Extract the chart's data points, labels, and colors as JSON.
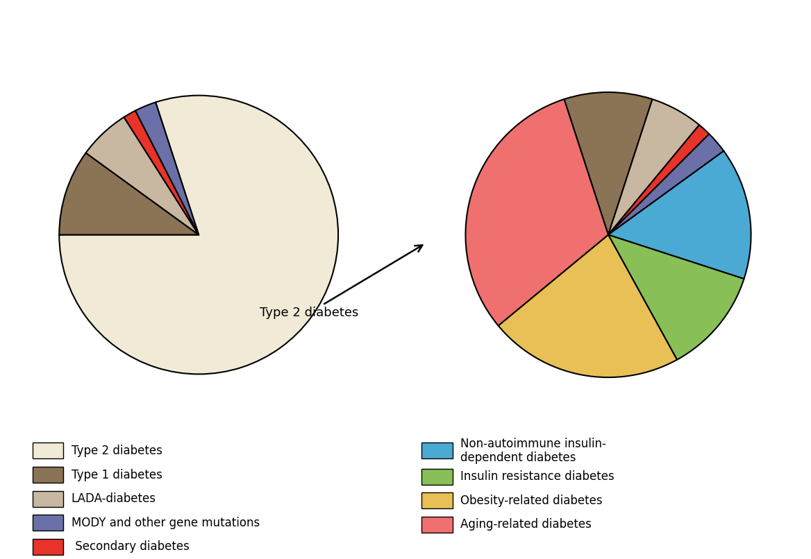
{
  "pie1_values": [
    80,
    10,
    6,
    1.5,
    2.5
  ],
  "pie1_colors": [
    "#f0ead6",
    "#8b7355",
    "#c8b8a2",
    "#e8332a",
    "#6b70a8"
  ],
  "pie1_startangle": 108,
  "pie2_values": [
    10,
    6,
    1.5,
    2.5,
    15,
    12,
    22,
    31
  ],
  "pie2_colors": [
    "#8b7355",
    "#c8b8a2",
    "#e8332a",
    "#6b70a8",
    "#4baad3",
    "#88c057",
    "#e8c055",
    "#f07070"
  ],
  "pie2_startangle": 108,
  "legend_left": [
    {
      "label": "Type 2 diabetes",
      "color": "#f0ead6"
    },
    {
      "label": "Type 1 diabetes",
      "color": "#8b7355"
    },
    {
      "label": "LADA-diabetes",
      "color": "#c8b8a2"
    },
    {
      "label": "MODY and other gene mutations",
      "color": "#6b70a8"
    },
    {
      "label": " Secondary diabetes",
      "color": "#e8332a"
    }
  ],
  "legend_right": [
    {
      "label": "Non-autoimmune insulin-\ndependent diabetes",
      "color": "#4baad3"
    },
    {
      "label": "Insulin resistance diabetes",
      "color": "#88c057"
    },
    {
      "label": "Obesity-related diabetes",
      "color": "#e8c055"
    },
    {
      "label": "Aging-related diabetes",
      "color": "#f07070"
    }
  ],
  "annotation_text": "Type 2 diabetes",
  "background_color": "#ffffff"
}
